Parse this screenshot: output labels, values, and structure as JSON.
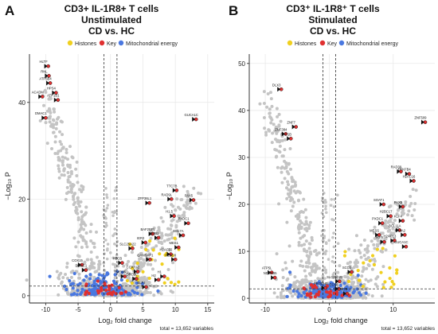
{
  "chart_data": [
    {
      "type": "scatter",
      "panel_letter": "A",
      "title_lines": [
        "CD3+ IL-1R8+ T cells",
        "Unstimulated",
        "CD vs. HC"
      ],
      "legend": [
        "Histones",
        "Key",
        "Mitochondrial energy"
      ],
      "xlabel": "Log₂ fold change",
      "ylabel": "−Log₁₀ P",
      "xlim": [
        -12.5,
        16
      ],
      "ylim": [
        -1.5,
        50
      ],
      "xticks": [
        -10,
        -5,
        0,
        5,
        10,
        15
      ],
      "yticks": [
        0,
        20,
        40
      ],
      "fc_cutoffs": [
        -1,
        1
      ],
      "p_cutoff": 2,
      "footer": "total = 13,652 variables",
      "labeled_points": [
        {
          "label": "HLTF",
          "x": -9.6,
          "y": 47.5
        },
        {
          "label": "RNL",
          "x": -9.5,
          "y": 45.5
        },
        {
          "label": "ATP5B4",
          "x": -9.3,
          "y": 44
        },
        {
          "label": "HPS4",
          "x": -8.4,
          "y": 42
        },
        {
          "label": "ACADM",
          "x": -10.5,
          "y": 41.2
        },
        {
          "label": "ATP1B1",
          "x": -8.1,
          "y": 40.5
        },
        {
          "label": "DMAC1",
          "x": -10.0,
          "y": 36.8
        },
        {
          "label": "GUCA1C",
          "x": 13.2,
          "y": 36.5
        },
        {
          "label": "TTC7B",
          "x": 10.2,
          "y": 21.8
        },
        {
          "label": "RAD9L",
          "x": 9.4,
          "y": 20.0
        },
        {
          "label": "PAX5",
          "x": 12.8,
          "y": 19.8
        },
        {
          "label": "ZFP36L1",
          "x": 6.0,
          "y": 19.2
        },
        {
          "label": "H1.5",
          "x": 9.8,
          "y": 16.5
        },
        {
          "label": "PXDC1",
          "x": 12.0,
          "y": 15.0
        },
        {
          "label": "BAF2BPL",
          "x": 6.5,
          "y": 12.8
        },
        {
          "label": "MESI1",
          "x": 7.4,
          "y": 12.0
        },
        {
          "label": "BCL7A",
          "x": 11.2,
          "y": 12.5
        },
        {
          "label": "IER2",
          "x": 5.4,
          "y": 11.0
        },
        {
          "label": "MES1",
          "x": 10.5,
          "y": 10.0
        },
        {
          "label": "SLC25A22",
          "x": 3.4,
          "y": 9.8
        },
        {
          "label": "H2AC22",
          "x": 9.3,
          "y": 8.6
        },
        {
          "label": "H2BC8",
          "x": 10.0,
          "y": 7.5
        },
        {
          "label": "CAMSAP1",
          "x": 6.1,
          "y": 7.5
        },
        {
          "label": "HSCB",
          "x": 1.8,
          "y": 6.8
        },
        {
          "label": "COX15",
          "x": -4.4,
          "y": 6.4
        },
        {
          "label": "DMAC1",
          "x": -3.8,
          "y": 5.3
        },
        {
          "label": "COX7A2",
          "x": 4.2,
          "y": 5.0
        },
        {
          "label": "TMEM5",
          "x": 2.2,
          "y": 4.0
        },
        {
          "label": "ORC2L",
          "x": 4.0,
          "y": 3.5
        },
        {
          "label": "H1",
          "x": 8.3,
          "y": 4.0
        },
        {
          "label": "H2",
          "x": 7.4,
          "y": 3.3
        },
        {
          "label": "ELF4",
          "x": 5.5,
          "y": 1.8
        }
      ]
    },
    {
      "type": "scatter",
      "panel_letter": "B",
      "title_lines": [
        "CD3⁺ IL-1R8⁺ T cells",
        "Stimulated",
        "CD vs. HC"
      ],
      "legend": [
        "Histones",
        "Key",
        "Mitochondrial energy"
      ],
      "xlabel": "Log₂ fold change",
      "ylabel": "−Log₁₀ P",
      "xlim": [
        -12.5,
        16.5
      ],
      "ylim": [
        -1,
        52
      ],
      "xticks": [
        -10,
        0,
        10
      ],
      "yticks": [
        0,
        10,
        20,
        30,
        40,
        50
      ],
      "fc_cutoffs": [
        -1,
        1
      ],
      "p_cutoff": 2,
      "footer": "total = 13,652 variables",
      "labeled_points": [
        {
          "label": "DLX3",
          "x": -7.5,
          "y": 44.5
        },
        {
          "label": "ZNF7",
          "x": -5.2,
          "y": 36.5
        },
        {
          "label": "ZNF384",
          "x": -6.8,
          "y": 35.0
        },
        {
          "label": "RAP1B",
          "x": -6.0,
          "y": 34.0
        },
        {
          "label": "ZNF509",
          "x": 15.0,
          "y": 37.5
        },
        {
          "label": "RAD39",
          "x": 11.2,
          "y": 27.0
        },
        {
          "label": "PFKFB4",
          "x": 12.5,
          "y": 26.5
        },
        {
          "label": "H2AC16",
          "x": 13.2,
          "y": 25.0
        },
        {
          "label": "SOAT1",
          "x": 8.5,
          "y": 20.0
        },
        {
          "label": "PAX5",
          "x": 11.5,
          "y": 19.5
        },
        {
          "label": "H2BC17",
          "x": 9.6,
          "y": 17.5
        },
        {
          "label": "KLF4",
          "x": 11.5,
          "y": 16.5
        },
        {
          "label": "PXDC1",
          "x": 8.3,
          "y": 16.0
        },
        {
          "label": "BCL11A",
          "x": 11.0,
          "y": 14.5
        },
        {
          "label": "MESS",
          "x": 7.8,
          "y": 13.5
        },
        {
          "label": "NR4A2",
          "x": 11.8,
          "y": 13.5
        },
        {
          "label": "H3.5",
          "x": 8.6,
          "y": 12.0
        },
        {
          "label": "H2AC13",
          "x": 10.2,
          "y": 12.3
        },
        {
          "label": "GUCA1C",
          "x": 12.0,
          "y": 11.0
        },
        {
          "label": "ATP5L",
          "x": -9.0,
          "y": 5.5
        },
        {
          "label": "SCO2",
          "x": 3.5,
          "y": 5.6
        },
        {
          "label": "NDUFB5",
          "x": -8.5,
          "y": 4.4
        },
        {
          "label": "SLC25A22",
          "x": 1.6,
          "y": 3.6
        },
        {
          "label": "PRODH2",
          "x": -0.6,
          "y": 2.2
        },
        {
          "label": "ECHB",
          "x": 1.5,
          "y": 2.0
        },
        {
          "label": "TTC7B",
          "x": 2.8,
          "y": 1.0
        }
      ]
    }
  ]
}
